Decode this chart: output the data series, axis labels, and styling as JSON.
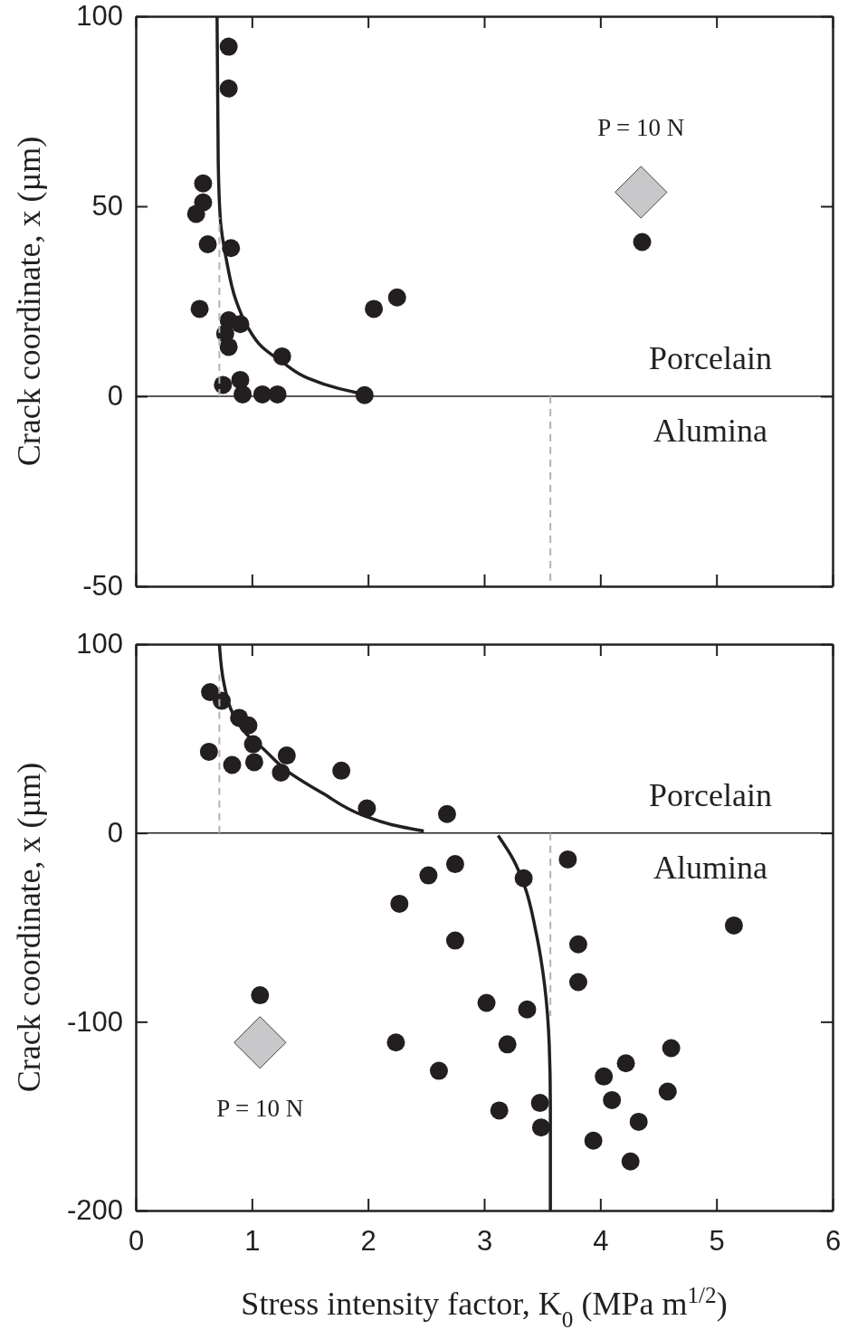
{
  "chart_data": [
    {
      "type": "scatter",
      "ylabel": "Crack coordinate, x (µm)",
      "xlim": [
        0,
        6
      ],
      "xticks": [
        0,
        1,
        2,
        3,
        4,
        5,
        6
      ],
      "ylim": [
        -50,
        100
      ],
      "yticks": [
        -50,
        0,
        50,
        100
      ],
      "tick_labels": "y",
      "grid": false,
      "ref_lines": [
        {
          "axis": "y",
          "value": 0,
          "color": "#231f20"
        }
      ],
      "annotations": [
        "Porcelain",
        "Alumina"
      ],
      "series": [
        {
          "type": "scatter",
          "marker": "circle",
          "color": "#231f20",
          "x": [
            0.8,
            0.8,
            0.58,
            0.58,
            0.52,
            0.62,
            0.82,
            0.55,
            0.8,
            0.9,
            0.77,
            0.8,
            1.26,
            0.75,
            0.9,
            0.92,
            1.09,
            1.22,
            1.97,
            2.05,
            2.25,
            4.36
          ],
          "values": [
            92,
            81,
            56,
            51,
            48,
            40,
            39,
            23,
            20,
            19,
            16.5,
            13,
            10.5,
            3,
            4.3,
            0.5,
            0.5,
            0.5,
            0.3,
            23,
            26,
            40.6
          ]
        },
        {
          "type": "line",
          "line_style": "solid",
          "color": "#231f20",
          "x": [
            0.7,
            0.71,
            0.73,
            0.78,
            0.86,
            0.96,
            1.09,
            1.27,
            1.48,
            1.74,
            1.97
          ],
          "values": [
            100,
            62,
            46,
            36,
            25.5,
            18.4,
            12.9,
            8.8,
            4.8,
            2.1,
            0.5
          ]
        },
        {
          "type": "line",
          "line_style": "dashed",
          "color": "#b3b3b3",
          "x": [
            0.72,
            0.72
          ],
          "values": [
            0,
            47
          ]
        },
        {
          "type": "line",
          "line_style": "dashed",
          "color": "#b3b3b3",
          "x": [
            3.57,
            3.57
          ],
          "values": [
            0,
            -50
          ]
        },
        {
          "type": "scatter",
          "marker": "diamond",
          "name": "P = 10 N",
          "color": "#c8c8ca",
          "x": [
            4.35
          ],
          "values": [
            53.7
          ]
        }
      ]
    },
    {
      "type": "scatter",
      "xlabel": "Stress intensity factor, K$_{0}$ (MPa m$^{1/2}$)",
      "ylabel": "Crack coordinate, x (µm)",
      "xlim": [
        0,
        6
      ],
      "xticks": [
        0,
        1,
        2,
        3,
        4,
        5,
        6
      ],
      "ylim": [
        -200,
        100
      ],
      "yticks": [
        -200,
        -100,
        0,
        100
      ],
      "grid": false,
      "ref_lines": [
        {
          "axis": "y",
          "value": 0,
          "color": "#231f20"
        }
      ],
      "annotations": [
        "Porcelain",
        "Alumina"
      ],
      "series": [
        {
          "type": "scatter",
          "marker": "circle",
          "color": "#231f20",
          "x": [
            0.64,
            0.74,
            0.89,
            0.97,
            1.01,
            0.63,
            0.83,
            1.02,
            1.3,
            1.25,
            1.77,
            1.99,
            2.68,
            2.27,
            2.52,
            2.75,
            3.34,
            3.72,
            2.75,
            3.81,
            3.81,
            3.02,
            3.37,
            2.24,
            3.2,
            2.61,
            3.48,
            3.49,
            3.13,
            4.61,
            4.22,
            4.03,
            4.1,
            4.58,
            4.33,
            3.94,
            4.26,
            5.15,
            1.07
          ],
          "values": [
            74.6,
            70,
            61,
            57,
            47,
            43,
            36,
            37.5,
            41,
            32,
            33,
            13,
            10,
            -37.5,
            -22.5,
            -16.5,
            -24,
            -14,
            -57,
            -59,
            -79,
            -90,
            -93.5,
            -111,
            -112,
            -126,
            -143,
            -156,
            -147,
            -114,
            -122,
            -129,
            -141.5,
            -137,
            -153,
            -163,
            -174,
            -49,
            -86
          ]
        },
        {
          "type": "line",
          "line_style": "solid",
          "color": "#231f20",
          "x": [
            0.72,
            0.76,
            0.83,
            0.96,
            1.09,
            1.3,
            1.61,
            1.95,
            2.21,
            2.48
          ],
          "values": [
            100,
            79,
            64,
            52,
            45,
            33,
            21,
            9.5,
            4.3,
            1
          ]
        },
        {
          "type": "line",
          "line_style": "solid",
          "color": "#231f20",
          "x": [
            3.12,
            3.25,
            3.35,
            3.45,
            3.52,
            3.56,
            3.57,
            3.57
          ],
          "values": [
            -1.4,
            -14,
            -28.5,
            -53.7,
            -80.5,
            -112,
            -144,
            -200
          ]
        },
        {
          "type": "line",
          "line_style": "dashed",
          "color": "#b3b3b3",
          "x": [
            0.72,
            0.72
          ],
          "values": [
            0,
            84
          ]
        },
        {
          "type": "line",
          "line_style": "dashed",
          "color": "#b3b3b3",
          "x": [
            3.57,
            3.57
          ],
          "values": [
            0,
            -97
          ]
        },
        {
          "type": "scatter",
          "marker": "diamond",
          "name": "P = 10 N",
          "color": "#c8c8ca",
          "x": [
            1.07
          ],
          "values": [
            -111
          ]
        }
      ]
    }
  ]
}
